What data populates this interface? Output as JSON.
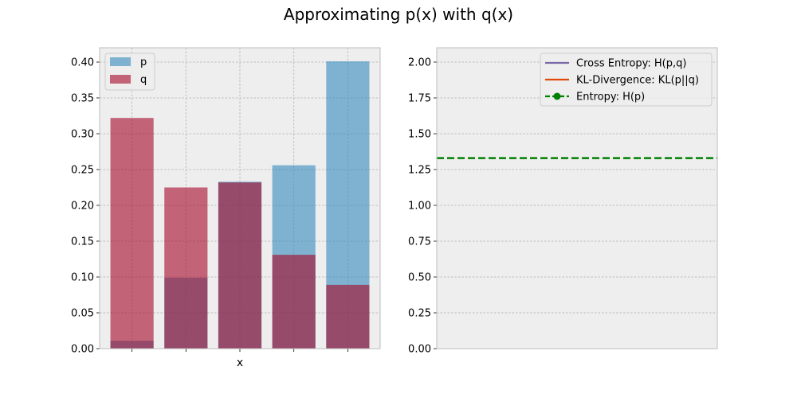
{
  "figure": {
    "title": "Approximating p(x) with q(x)"
  },
  "chart_data": [
    {
      "type": "bar",
      "categories": [
        "",
        "",
        "",
        "",
        ""
      ],
      "xlabel": "x",
      "ylabel": "",
      "ylim": [
        0,
        0.42
      ],
      "yticks": [
        0.0,
        0.05,
        0.1,
        0.15,
        0.2,
        0.25,
        0.3,
        0.35,
        0.4
      ],
      "ytick_labels": [
        "0.00",
        "0.05",
        "0.10",
        "0.15",
        "0.20",
        "0.25",
        "0.30",
        "0.35",
        "0.40"
      ],
      "grid": true,
      "legend_position": "top-left",
      "series": [
        {
          "name": "p",
          "color": "#348ABD",
          "values": [
            0.011,
            0.099,
            0.233,
            0.256,
            0.401
          ]
        },
        {
          "name": "q",
          "color": "#A60628",
          "values": [
            0.322,
            0.225,
            0.232,
            0.131,
            0.089
          ]
        }
      ]
    },
    {
      "type": "line",
      "xlabel": "",
      "ylabel": "",
      "ylim": [
        0,
        2.1
      ],
      "yticks": [
        0.0,
        0.25,
        0.5,
        0.75,
        1.0,
        1.25,
        1.5,
        1.75,
        2.0
      ],
      "ytick_labels": [
        "0.00",
        "0.25",
        "0.50",
        "0.75",
        "1.00",
        "1.25",
        "1.50",
        "1.75",
        "2.00"
      ],
      "grid": true,
      "legend_position": "top-right",
      "series": [
        {
          "name": "Cross Entropy: H(p,q)",
          "color": "#7A68A6",
          "style": "solid",
          "marker": "none",
          "values": []
        },
        {
          "name": "KL-Divergence: KL(p||q)",
          "color": "#E24A0B",
          "style": "solid",
          "marker": "none",
          "values": []
        },
        {
          "name": "Entropy: H(p)",
          "color": "#008000",
          "style": "dashed",
          "marker": "circle",
          "values": [
            1.33
          ]
        }
      ]
    }
  ]
}
